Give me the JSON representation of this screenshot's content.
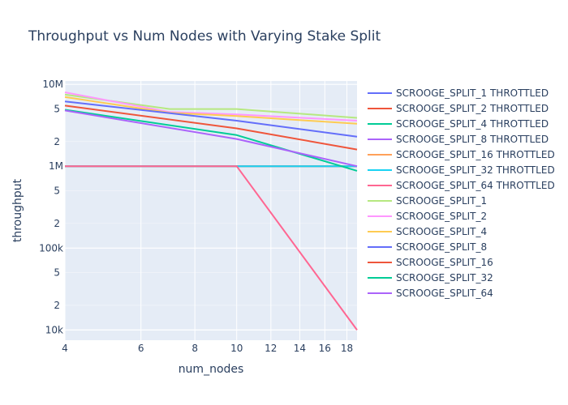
{
  "chart_data": {
    "type": "line",
    "title": "Throughput vs Num Nodes with Varying Stake Split",
    "xlabel": "num_nodes",
    "ylabel": "throughput",
    "x_scale": "log",
    "y_scale": "log",
    "xlim": [
      4,
      19
    ],
    "ylim": [
      7500,
      11000000
    ],
    "grid": true,
    "legend_position": "right",
    "x_ticks": [
      {
        "v": 4,
        "label": "4"
      },
      {
        "v": 6,
        "label": "6"
      },
      {
        "v": 8,
        "label": "8"
      },
      {
        "v": 10,
        "label": "10"
      },
      {
        "v": 12,
        "label": "12"
      },
      {
        "v": 14,
        "label": "14"
      },
      {
        "v": 16,
        "label": "16"
      },
      {
        "v": 18,
        "label": "18"
      }
    ],
    "y_major_ticks": [
      {
        "v": 10000,
        "label": "10k"
      },
      {
        "v": 100000,
        "label": "100k"
      },
      {
        "v": 1000000,
        "label": "1M"
      },
      {
        "v": 10000000,
        "label": "10M"
      }
    ],
    "y_minor_ticks": [
      {
        "v": 20000,
        "label": "2"
      },
      {
        "v": 50000,
        "label": "5"
      },
      {
        "v": 200000,
        "label": "2"
      },
      {
        "v": 500000,
        "label": "5"
      },
      {
        "v": 2000000,
        "label": "2"
      },
      {
        "v": 5000000,
        "label": "5"
      }
    ],
    "series": [
      {
        "name": "SCROOGE_SPLIT_1 THROTTLED",
        "color": "#636efa",
        "x": [
          4,
          19
        ],
        "y": [
          1000000,
          1000000
        ]
      },
      {
        "name": "SCROOGE_SPLIT_2 THROTTLED",
        "color": "#EF553B",
        "x": [
          4,
          19
        ],
        "y": [
          1000000,
          1000000
        ]
      },
      {
        "name": "SCROOGE_SPLIT_4 THROTTLED",
        "color": "#00cc96",
        "x": [
          4,
          19
        ],
        "y": [
          1000000,
          1000000
        ]
      },
      {
        "name": "SCROOGE_SPLIT_8 THROTTLED",
        "color": "#ab63fa",
        "x": [
          4,
          19
        ],
        "y": [
          1000000,
          1000000
        ]
      },
      {
        "name": "SCROOGE_SPLIT_16 THROTTLED",
        "color": "#FFA15A",
        "x": [
          4,
          19
        ],
        "y": [
          1000000,
          1000000
        ]
      },
      {
        "name": "SCROOGE_SPLIT_32 THROTTLED",
        "color": "#19d3f3",
        "x": [
          4,
          19
        ],
        "y": [
          1000000,
          1000000
        ]
      },
      {
        "name": "SCROOGE_SPLIT_64 THROTTLED",
        "color": "#FF6692",
        "x": [
          4,
          10,
          19
        ],
        "y": [
          1000000,
          1000000,
          10000
        ]
      },
      {
        "name": "SCROOGE_SPLIT_1",
        "color": "#B6E880",
        "x": [
          4,
          7,
          10,
          19
        ],
        "y": [
          7500000,
          5000000,
          5000000,
          3900000
        ]
      },
      {
        "name": "SCROOGE_SPLIT_2",
        "color": "#FF97FF",
        "x": [
          4,
          7,
          10,
          19
        ],
        "y": [
          8000000,
          4600000,
          4300000,
          3600000
        ]
      },
      {
        "name": "SCROOGE_SPLIT_4",
        "color": "#FECB52",
        "x": [
          4,
          7,
          10,
          19
        ],
        "y": [
          7000000,
          4500000,
          4100000,
          3300000
        ]
      },
      {
        "name": "SCROOGE_SPLIT_8",
        "color": "#636efa",
        "x": [
          4,
          10,
          19
        ],
        "y": [
          6200000,
          3600000,
          2300000
        ]
      },
      {
        "name": "SCROOGE_SPLIT_16",
        "color": "#EF553B",
        "x": [
          4,
          10,
          19
        ],
        "y": [
          5500000,
          2900000,
          1600000
        ]
      },
      {
        "name": "SCROOGE_SPLIT_32",
        "color": "#00cc96",
        "x": [
          4,
          10,
          19
        ],
        "y": [
          4900000,
          2400000,
          880000
        ]
      },
      {
        "name": "SCROOGE_SPLIT_64",
        "color": "#ab63fa",
        "x": [
          4,
          10,
          19
        ],
        "y": [
          4800000,
          2150000,
          1000000
        ]
      }
    ]
  }
}
